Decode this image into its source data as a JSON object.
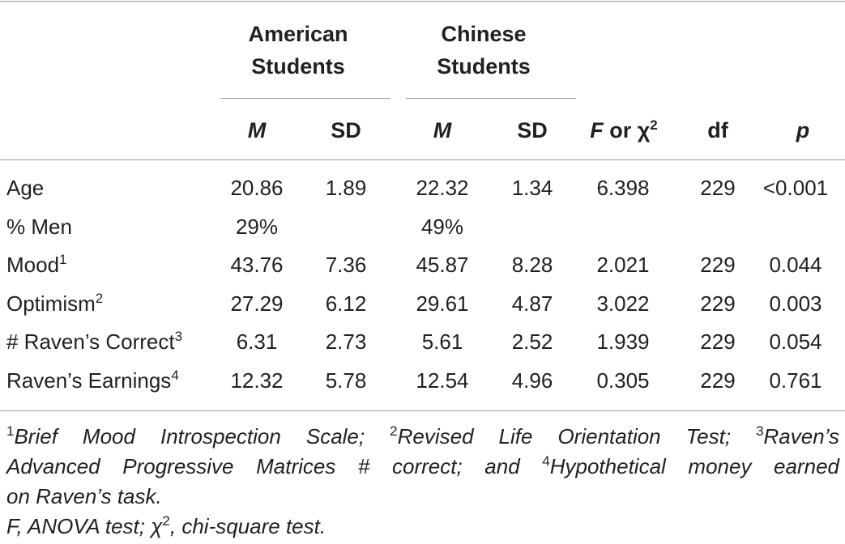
{
  "table": {
    "group_headers": [
      {
        "line1": "American",
        "line2": "Students"
      },
      {
        "line1": "Chinese",
        "line2": "Students"
      }
    ],
    "sub_headers": {
      "am_m": "M",
      "am_sd": "SD",
      "cn_m": "M",
      "cn_sd": "SD",
      "f_italic": "F",
      "f_rest": " or χ",
      "f_sup": "2",
      "df": "df",
      "p": "p"
    },
    "rows": [
      {
        "label": "Age",
        "sup": "",
        "am_m": "20.86",
        "am_sd": "1.89",
        "cn_m": "22.32",
        "cn_sd": "1.34",
        "f": "6.398",
        "df": "229",
        "p": "<0.001"
      },
      {
        "label": "% Men",
        "sup": "",
        "am_m": "29%",
        "am_sd": "",
        "cn_m": "49%",
        "cn_sd": "",
        "f": "",
        "df": "",
        "p": ""
      },
      {
        "label": "Mood",
        "sup": "1",
        "am_m": "43.76",
        "am_sd": "7.36",
        "cn_m": "45.87",
        "cn_sd": "8.28",
        "f": "2.021",
        "df": "229",
        "p": "0.044"
      },
      {
        "label": "Optimism",
        "sup": "2",
        "am_m": "27.29",
        "am_sd": "6.12",
        "cn_m": "29.61",
        "cn_sd": "4.87",
        "f": "3.022",
        "df": "229",
        "p": "0.003"
      },
      {
        "label": "# Raven’s Correct",
        "sup": "3",
        "am_m": "6.31",
        "am_sd": "2.73",
        "cn_m": "5.61",
        "cn_sd": "2.52",
        "f": "1.939",
        "df": "229",
        "p": "0.054"
      },
      {
        "label": "Raven’s Earnings",
        "sup": "4",
        "am_m": "12.32",
        "am_sd": "5.78",
        "cn_m": "12.54",
        "cn_sd": "4.96",
        "f": "0.305",
        "df": "229",
        "p": "0.761"
      }
    ]
  },
  "footnotes": {
    "n1_sup": "1",
    "n1": "Brief Mood Introspection Scale;",
    "n2_sup": "2",
    "n2": "Revised Life Orientation Test;",
    "n3_sup": "3",
    "n3_a": "Raven’s",
    "n3_b": "Advanced Progressive Matrices # correct; and",
    "n4_sup": "4",
    "n4_a": "Hypothetical money earned",
    "n4_b": "on Raven’s task.",
    "abbrev_a": "F, ANOVA test; χ",
    "abbrev_sup": "2",
    "abbrev_b": ", chi-square test."
  }
}
